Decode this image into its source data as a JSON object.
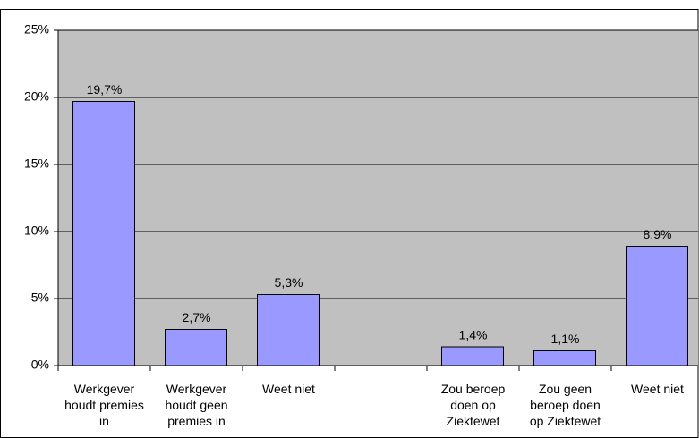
{
  "chart_data": {
    "type": "bar",
    "categories": [
      "Werkgever houdt premies in",
      "Werkgever houdt geen premies in",
      "Weet niet",
      null,
      "Zou beroep doen op Ziektewet",
      "Zou geen beroep doen op Ziektewet",
      "Weet niet"
    ],
    "values": [
      19.7,
      2.7,
      5.3,
      null,
      1.4,
      1.1,
      8.9
    ],
    "value_labels": [
      "19,7%",
      "2,7%",
      "5,3%",
      null,
      "1,4%",
      "1,1%",
      "8,9%"
    ],
    "color": "#9999ff",
    "ylim": [
      0,
      25
    ],
    "yticks": [
      {
        "value": 0,
        "label": "0%"
      },
      {
        "value": 5,
        "label": "5%"
      },
      {
        "value": 10,
        "label": "10%"
      },
      {
        "value": 15,
        "label": "15%"
      },
      {
        "value": 20,
        "label": "20%"
      },
      {
        "value": 25,
        "label": "25%"
      }
    ],
    "grid": true
  }
}
